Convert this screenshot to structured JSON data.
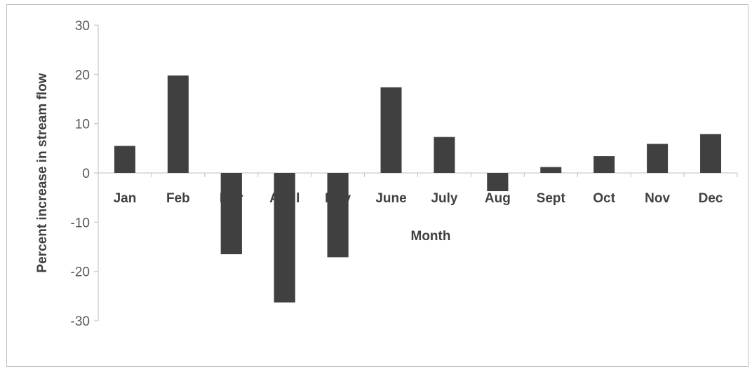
{
  "chart_data": {
    "type": "bar",
    "title": "",
    "xlabel": "Month",
    "ylabel": "Percent increase in stream flow",
    "categories": [
      "Jan",
      "Feb",
      "Mar",
      "April",
      "May",
      "June",
      "July",
      "Aug",
      "Sept",
      "Oct",
      "Nov",
      "Dec"
    ],
    "values": [
      5.5,
      19.8,
      -16.5,
      -26.3,
      -17.1,
      17.4,
      7.3,
      -3.7,
      1.2,
      3.4,
      5.9,
      7.9
    ],
    "ylim": [
      -30,
      30
    ],
    "yticks": [
      30,
      20,
      10,
      0,
      -10,
      -20,
      -30
    ],
    "grid": false,
    "legend": "none",
    "bar_color": "#404040",
    "axis_color": "#bfbfbf"
  }
}
